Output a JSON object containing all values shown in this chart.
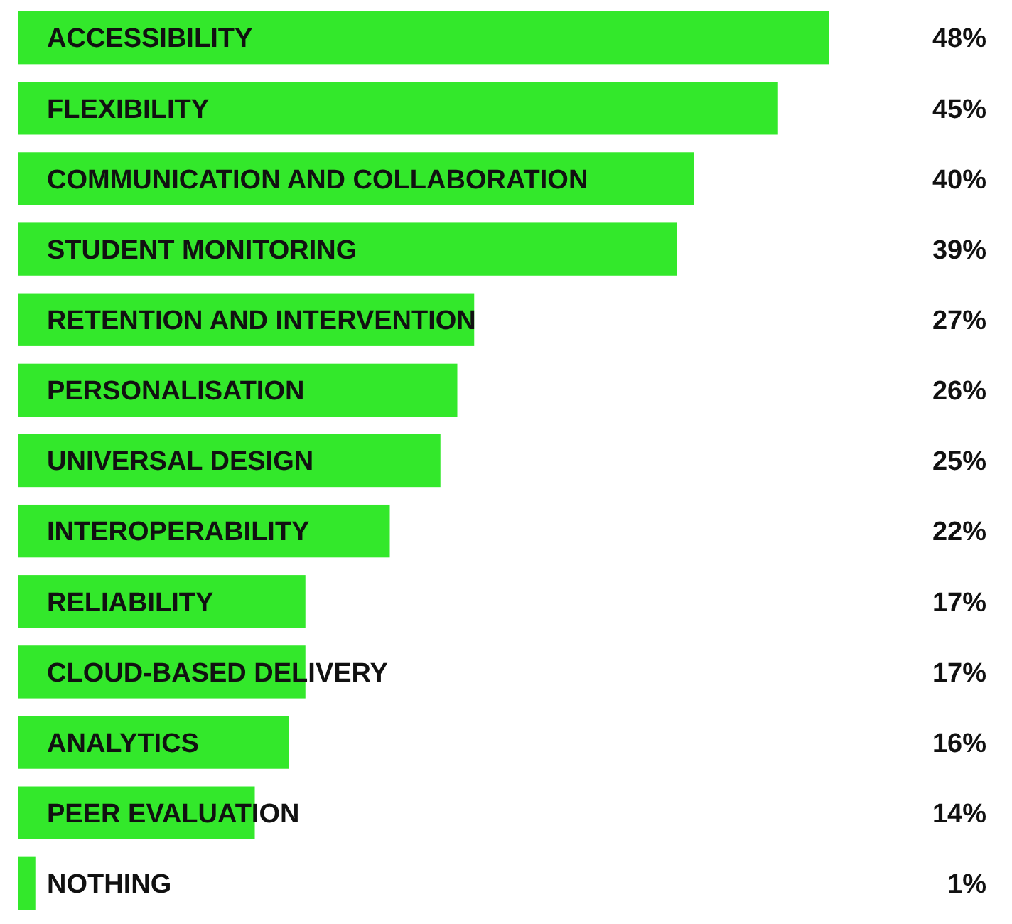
{
  "chart_data": {
    "type": "bar",
    "orientation": "horizontal",
    "categories": [
      "ACCESSIBILITY",
      "FLEXIBILITY",
      "COMMUNICATION AND COLLABORATION",
      "STUDENT MONITORING",
      "RETENTION AND INTERVENTION",
      "PERSONALISATION",
      "UNIVERSAL DESIGN",
      "INTEROPERABILITY",
      "RELIABILITY",
      "CLOUD-BASED DELIVERY",
      "ANALYTICS",
      "PEER EVALUATION",
      "NOTHING"
    ],
    "values": [
      48,
      45,
      40,
      39,
      27,
      26,
      25,
      22,
      17,
      17,
      16,
      14,
      1
    ],
    "value_labels": [
      "48%",
      "45%",
      "40%",
      "39%",
      "27%",
      "26%",
      "25%",
      "22%",
      "17%",
      "17%",
      "16%",
      "14%",
      "1%"
    ],
    "color": "#33e82b"
  }
}
